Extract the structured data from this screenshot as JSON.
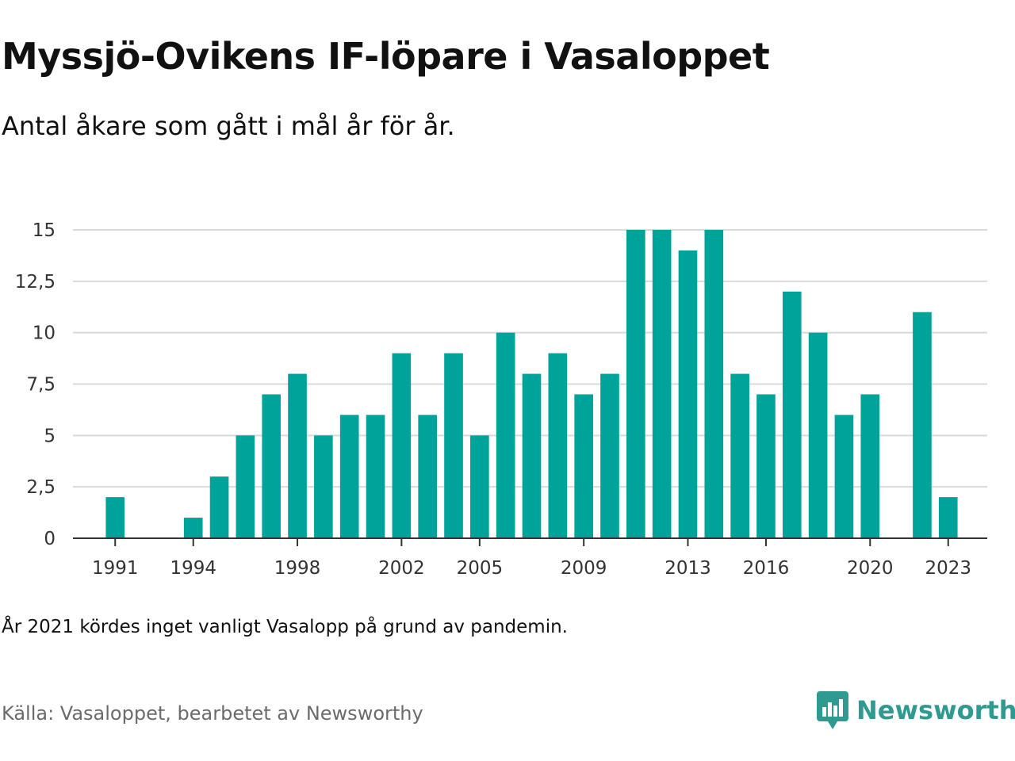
{
  "header": {
    "title": "Myssjö-Ovikens IF-löpare i Vasaloppet",
    "subtitle": "Antal åkare som gått i mål år för år."
  },
  "footer": {
    "note": "År 2021 kördes inget vanligt Vasalopp på grund av pandemin.",
    "source": "Källa: Vasaloppet, bearbetet av Newsworthy",
    "brand": "Newsworthy",
    "brand_icon": "newsworthy-logo-icon"
  },
  "colors": {
    "bar": "#00a39a",
    "brand": "#2f9a8f",
    "grid": "#d9d9d9",
    "axis": "#333333"
  },
  "chart_data": {
    "type": "bar",
    "title": "Myssjö-Ovikens IF-löpare i Vasaloppet",
    "subtitle": "Antal åkare som gått i mål år för år.",
    "xlabel": "",
    "ylabel": "",
    "ylim": [
      0,
      15
    ],
    "yticks": [
      0,
      2.5,
      5,
      7.5,
      10,
      12.5,
      15
    ],
    "ytick_labels": [
      "0",
      "2,5",
      "5",
      "7,5",
      "10",
      "12,5",
      "15"
    ],
    "xtick_labels": [
      "1991",
      "1994",
      "1998",
      "2002",
      "2005",
      "2009",
      "2013",
      "2016",
      "2020",
      "2023"
    ],
    "grid": true,
    "categories": [
      1990,
      1991,
      1992,
      1993,
      1994,
      1995,
      1996,
      1997,
      1998,
      1999,
      2000,
      2001,
      2002,
      2003,
      2004,
      2005,
      2006,
      2007,
      2008,
      2009,
      2010,
      2011,
      2012,
      2013,
      2014,
      2015,
      2016,
      2017,
      2018,
      2019,
      2020,
      2021,
      2022,
      2023,
      2024
    ],
    "values": [
      null,
      2,
      null,
      null,
      1,
      3,
      5,
      7,
      8,
      5,
      6,
      6,
      9,
      6,
      9,
      5,
      10,
      8,
      9,
      7,
      8,
      15,
      15,
      14,
      15,
      8,
      7,
      12,
      10,
      6,
      7,
      null,
      11,
      2,
      null
    ]
  }
}
